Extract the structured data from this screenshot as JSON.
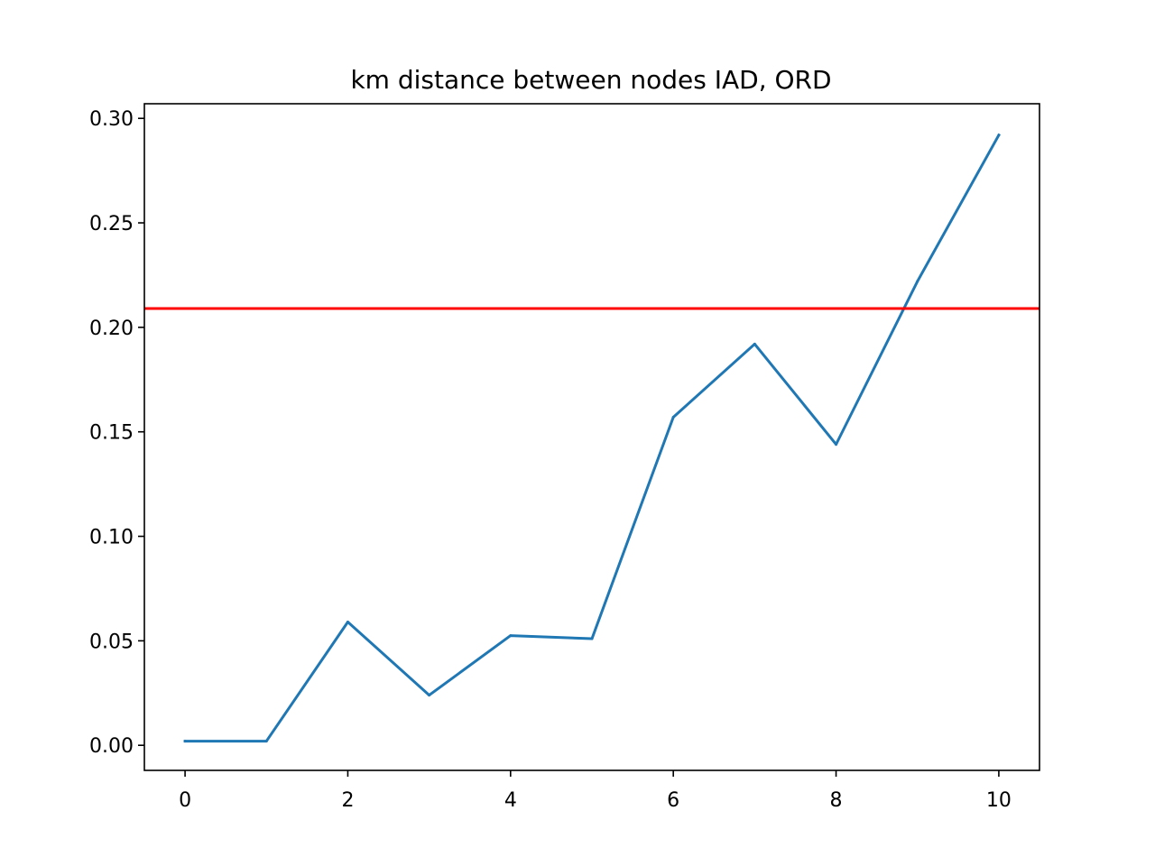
{
  "chart_data": {
    "type": "line",
    "title": "km distance between nodes IAD, ORD",
    "xlabel": "",
    "ylabel": "",
    "xlim": [
      -0.5,
      10.5
    ],
    "ylim": [
      -0.012,
      0.307
    ],
    "xticks": [
      0,
      2,
      4,
      6,
      8,
      10
    ],
    "xtick_labels": [
      "0",
      "2",
      "4",
      "6",
      "8",
      "10"
    ],
    "yticks": [
      0.0,
      0.05,
      0.1,
      0.15,
      0.2,
      0.25,
      0.3
    ],
    "ytick_labels": [
      "0.00",
      "0.05",
      "0.10",
      "0.15",
      "0.20",
      "0.25",
      "0.30"
    ],
    "grid": false,
    "series": [
      {
        "color": "#1f77b4",
        "x": [
          0,
          1,
          2,
          3,
          4,
          5,
          6,
          7,
          8,
          9,
          10
        ],
        "y": [
          0.002,
          0.002,
          0.059,
          0.024,
          0.0525,
          0.051,
          0.157,
          0.192,
          0.144,
          0.222,
          0.292
        ]
      }
    ],
    "reference_lines": [
      {
        "orientation": "horizontal",
        "y": 0.209,
        "color": "#ff0000"
      }
    ]
  }
}
